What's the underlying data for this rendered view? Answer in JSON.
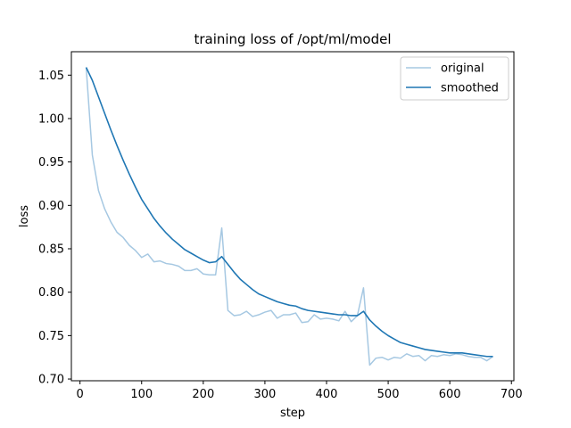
{
  "chart_data": {
    "type": "line",
    "title": "training loss of /opt/ml/model",
    "xlabel": "step",
    "ylabel": "loss",
    "xlim": [
      -14,
      704
    ],
    "ylim": [
      0.698,
      1.077
    ],
    "xticks": [
      0,
      100,
      200,
      300,
      400,
      500,
      600,
      700
    ],
    "yticks": [
      0.7,
      0.75,
      0.8,
      0.85,
      0.9,
      0.95,
      1.0,
      1.05
    ],
    "grid": false,
    "legend_position": "top-right",
    "colors": {
      "original": "#a6c8e2",
      "smoothed": "#1f77b4"
    },
    "x": [
      10,
      20,
      30,
      40,
      50,
      60,
      70,
      80,
      90,
      100,
      110,
      120,
      130,
      140,
      150,
      160,
      170,
      180,
      190,
      200,
      210,
      220,
      230,
      240,
      250,
      260,
      270,
      280,
      290,
      300,
      310,
      320,
      330,
      340,
      350,
      360,
      370,
      380,
      390,
      400,
      410,
      420,
      430,
      440,
      450,
      460,
      470,
      480,
      490,
      500,
      510,
      520,
      530,
      540,
      550,
      560,
      570,
      580,
      590,
      600,
      610,
      620,
      630,
      640,
      650,
      660,
      670
    ],
    "series": [
      {
        "name": "original",
        "values": [
          1.059,
          0.958,
          0.917,
          0.896,
          0.881,
          0.869,
          0.863,
          0.854,
          0.848,
          0.84,
          0.844,
          0.835,
          0.836,
          0.833,
          0.832,
          0.83,
          0.825,
          0.825,
          0.827,
          0.821,
          0.82,
          0.82,
          0.874,
          0.779,
          0.773,
          0.774,
          0.778,
          0.772,
          0.774,
          0.777,
          0.779,
          0.77,
          0.774,
          0.774,
          0.776,
          0.765,
          0.766,
          0.774,
          0.769,
          0.77,
          0.769,
          0.767,
          0.778,
          0.766,
          0.773,
          0.805,
          0.716,
          0.724,
          0.725,
          0.722,
          0.725,
          0.724,
          0.729,
          0.726,
          0.727,
          0.721,
          0.727,
          0.726,
          0.728,
          0.727,
          0.729,
          0.728,
          0.726,
          0.725,
          0.725,
          0.721,
          0.726
        ]
      },
      {
        "name": "smoothed",
        "values": [
          1.059,
          1.044,
          1.025,
          1.006,
          0.987,
          0.969,
          0.952,
          0.936,
          0.921,
          0.907,
          0.896,
          0.885,
          0.876,
          0.868,
          0.861,
          0.855,
          0.849,
          0.845,
          0.841,
          0.837,
          0.834,
          0.835,
          0.841,
          0.832,
          0.823,
          0.815,
          0.809,
          0.803,
          0.798,
          0.795,
          0.792,
          0.789,
          0.787,
          0.785,
          0.784,
          0.781,
          0.779,
          0.778,
          0.777,
          0.776,
          0.775,
          0.774,
          0.774,
          0.773,
          0.773,
          0.778,
          0.768,
          0.761,
          0.755,
          0.75,
          0.746,
          0.742,
          0.74,
          0.738,
          0.736,
          0.734,
          0.733,
          0.732,
          0.731,
          0.73,
          0.73,
          0.73,
          0.729,
          0.728,
          0.727,
          0.726,
          0.726
        ]
      }
    ]
  }
}
